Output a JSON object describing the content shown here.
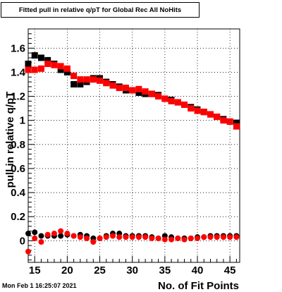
{
  "chart_data": {
    "type": "scatter",
    "title": "Fitted pull in relative q/pT for Global Rec All NoHits",
    "xlabel": "No. of Fit Points",
    "ylabel": "pull in relative q/pT",
    "xlim": [
      14,
      46.5
    ],
    "ylim": [
      -0.18,
      1.76
    ],
    "x_ticks": [
      15,
      20,
      25,
      30,
      35,
      40,
      45
    ],
    "y_ticks": [
      0,
      0.2,
      0.4,
      0.6,
      0.8,
      1,
      1.2,
      1.4,
      1.6
    ],
    "y_tick_labels": [
      "0",
      "0.2",
      "0.4",
      "0.6",
      "0.8",
      "1",
      "1.2",
      "1.4",
      "1.6"
    ],
    "grid": true,
    "series": [
      {
        "color": "#000000",
        "marker": "square",
        "x": [
          14,
          15,
          16,
          17,
          18,
          19,
          20,
          21,
          22,
          23,
          24,
          25,
          26,
          27,
          28,
          29,
          30,
          31,
          32,
          33,
          34,
          35,
          36,
          37,
          38,
          39,
          40,
          41,
          42,
          43,
          44,
          45,
          46
        ],
        "y": [
          1.47,
          1.54,
          1.52,
          1.5,
          1.47,
          1.42,
          1.4,
          1.3,
          1.3,
          1.32,
          1.35,
          1.35,
          1.32,
          1.3,
          1.28,
          1.25,
          1.25,
          1.23,
          1.22,
          1.22,
          1.21,
          1.18,
          1.17,
          1.15,
          1.13,
          1.11,
          1.09,
          1.07,
          1.05,
          1.03,
          1.01,
          0.99,
          0.98
        ],
        "yerr": 0.02
      },
      {
        "color": "#ff0000",
        "marker": "square",
        "x": [
          14,
          15,
          16,
          17,
          18,
          19,
          20,
          21,
          22,
          23,
          24,
          25,
          26,
          27,
          28,
          29,
          30,
          31,
          32,
          33,
          34,
          35,
          36,
          37,
          38,
          39,
          40,
          41,
          42,
          43,
          44,
          45,
          46
        ],
        "y": [
          1.42,
          1.42,
          1.43,
          1.47,
          1.46,
          1.45,
          1.43,
          1.37,
          1.34,
          1.34,
          1.34,
          1.33,
          1.31,
          1.29,
          1.27,
          1.27,
          1.25,
          1.26,
          1.24,
          1.22,
          1.2,
          1.18,
          1.16,
          1.15,
          1.13,
          1.1,
          1.08,
          1.07,
          1.05,
          1.03,
          1.0,
          0.99,
          0.95
        ],
        "yerr": 0.02
      },
      {
        "color": "#000000",
        "marker": "circle",
        "x": [
          14,
          15,
          16,
          17,
          18,
          19,
          20,
          21,
          22,
          23,
          24,
          25,
          26,
          27,
          28,
          29,
          30,
          31,
          32,
          33,
          34,
          35,
          36,
          37,
          38,
          39,
          40,
          41,
          42,
          43,
          44,
          45,
          46
        ],
        "y": [
          0.06,
          0.07,
          0.04,
          0.04,
          0.04,
          0.04,
          0.05,
          0.04,
          0.05,
          0.04,
          0.02,
          0.02,
          0.04,
          0.06,
          0.06,
          0.04,
          0.04,
          0.04,
          0.04,
          0.03,
          0.02,
          0.04,
          0.03,
          0.02,
          0.02,
          0.02,
          0.03,
          0.03,
          0.04,
          0.04,
          0.04,
          0.04,
          0.04
        ],
        "yerr": 0.015
      },
      {
        "color": "#ff0000",
        "marker": "circle",
        "x": [
          14,
          15,
          16,
          17,
          18,
          19,
          20,
          21,
          22,
          23,
          24,
          25,
          26,
          27,
          28,
          29,
          30,
          31,
          32,
          33,
          34,
          35,
          36,
          37,
          38,
          39,
          40,
          41,
          42,
          43,
          44,
          45,
          46
        ],
        "y": [
          -0.09,
          0.02,
          -0.01,
          0.05,
          0.06,
          0.08,
          0.06,
          0.04,
          0.03,
          0.02,
          -0.01,
          0.02,
          0.03,
          0.04,
          0.03,
          0.03,
          0.03,
          0.03,
          0.03,
          0.02,
          0.02,
          0.01,
          0.01,
          0.02,
          0.01,
          0.02,
          0.02,
          0.03,
          0.03,
          0.03,
          0.03,
          0.03,
          0.03
        ],
        "yerr": 0.015
      }
    ]
  },
  "footer": {
    "timestamp": "Mon Feb  1 16:25:07 2021"
  }
}
